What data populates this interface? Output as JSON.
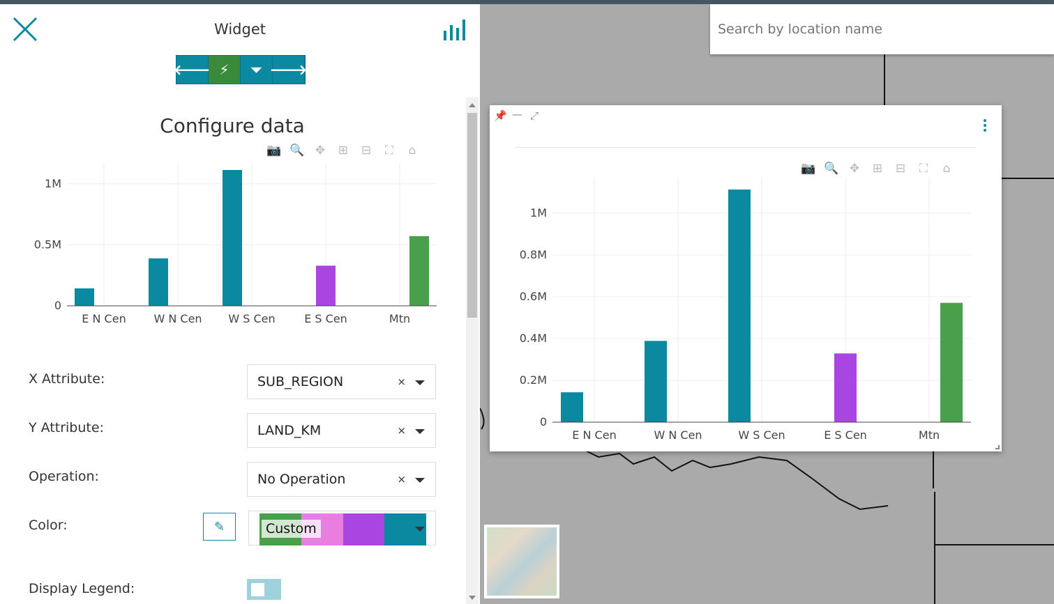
{
  "panel": {
    "title": "Widget",
    "nav_buttons": [
      {
        "icon": "arrow-left-icon",
        "glyph": "🡐"
      },
      {
        "icon": "plug-icon",
        "glyph": "⚡"
      },
      {
        "icon": "filter-icon",
        "glyph": "⏷"
      },
      {
        "icon": "arrow-right-icon",
        "glyph": "🡒"
      }
    ],
    "heading": "Configure data",
    "fields": {
      "x_attribute": {
        "label": "X Attribute:",
        "value": "SUB_REGION"
      },
      "y_attribute": {
        "label": "Y Attribute:",
        "value": "LAND_KM"
      },
      "operation": {
        "label": "Operation:",
        "value": "No Operation"
      },
      "color": {
        "label": "Color:",
        "value": "Custom",
        "swatches": [
          "#4aa04a",
          "#e87ee0",
          "#a945e0",
          "#0a89a0"
        ]
      },
      "display_legend": {
        "label": "Display Legend:",
        "checked": false
      }
    },
    "clear_glyph": "×",
    "pencil_glyph": "✎"
  },
  "map": {
    "search_placeholder": "Search by location name"
  },
  "modebar": [
    "camera-icon",
    "zoom-icon",
    "pan-icon",
    "zoom-in-icon",
    "zoom-out-icon",
    "autoscale-icon",
    "home-icon"
  ],
  "colors": {
    "accent": "#0a89a0",
    "active_nav": "#3a8a3c"
  },
  "chart_data": [
    {
      "type": "bar",
      "categories": [
        "E N Cen",
        "W N Cen",
        "W S Cen",
        "E S Cen",
        "Mtn"
      ],
      "series": [
        {
          "color": "#0a89a0",
          "values": [
            143000,
            389000,
            1113000,
            null,
            null
          ]
        },
        {
          "color": "#a945e0",
          "values": [
            null,
            null,
            null,
            329000,
            null
          ]
        },
        {
          "color": "#4aa04a",
          "values": [
            null,
            null,
            null,
            null,
            571000
          ]
        }
      ],
      "yticks": [
        0,
        500000,
        1000000
      ],
      "ytick_labels": [
        "0",
        "0.5M",
        "1M"
      ],
      "ylim": [
        0,
        1170000
      ],
      "grid": true
    },
    {
      "type": "bar",
      "categories": [
        "E N Cen",
        "W N Cen",
        "W S Cen",
        "E S Cen",
        "Mtn"
      ],
      "series": [
        {
          "color": "#0a89a0",
          "values": [
            143000,
            389000,
            1113000,
            null,
            null
          ]
        },
        {
          "color": "#a945e0",
          "values": [
            null,
            null,
            null,
            329000,
            null
          ]
        },
        {
          "color": "#4aa04a",
          "values": [
            null,
            null,
            null,
            null,
            571000
          ]
        }
      ],
      "yticks": [
        0,
        200000,
        400000,
        600000,
        800000,
        1000000
      ],
      "ytick_labels": [
        "0",
        "0.2M",
        "0.4M",
        "0.6M",
        "0.8M",
        "1M"
      ],
      "ylim": [
        0,
        1170000
      ],
      "grid": true
    }
  ]
}
